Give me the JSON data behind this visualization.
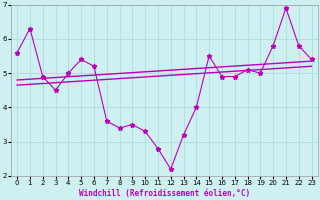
{
  "xlabel": "Windchill (Refroidissement éolien,°C)",
  "bg_color": "#cff0f0",
  "line_color": "#bb00bb",
  "x_data": [
    0,
    1,
    2,
    3,
    4,
    5,
    6,
    7,
    8,
    9,
    10,
    11,
    12,
    13,
    14,
    15,
    16,
    17,
    18,
    19,
    20,
    21,
    22,
    23
  ],
  "y_data": [
    5.6,
    6.3,
    4.9,
    4.5,
    5.0,
    5.4,
    5.2,
    3.6,
    3.4,
    3.5,
    3.3,
    2.8,
    2.2,
    3.2,
    4.0,
    5.5,
    4.9,
    4.9,
    5.1,
    5.0,
    5.8,
    6.9,
    5.8,
    5.4
  ],
  "trend1_start": 4.8,
  "trend1_end": 5.35,
  "trend2_start": 4.65,
  "trend2_end": 5.2,
  "ylim": [
    2,
    7
  ],
  "xlim": [
    -0.5,
    23.5
  ],
  "grid_color": "#aadddd",
  "xlabel_color": "#bb00bb",
  "xlabel_fontsize": 5.5,
  "tick_fontsize": 5.0
}
